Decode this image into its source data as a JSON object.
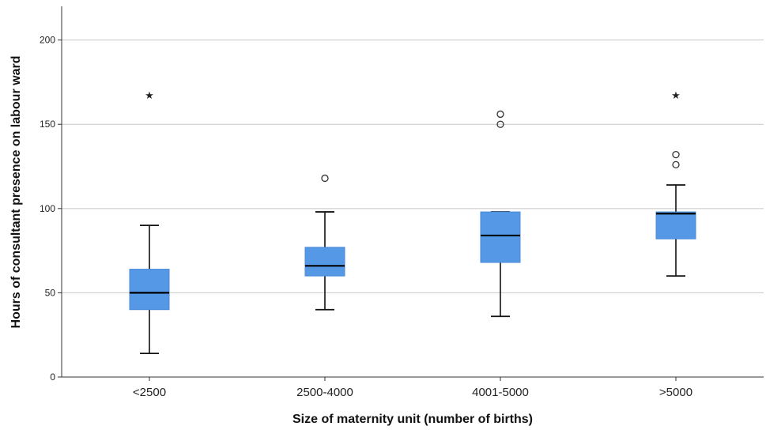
{
  "chart_data": {
    "type": "boxplot",
    "xlabel": "Size of maternity unit (number of births)",
    "ylabel": "Hours of consultant presence on labour ward",
    "ylim": [
      0,
      220
    ],
    "yticks": [
      0,
      50,
      100,
      150,
      200
    ],
    "grid": true,
    "box_color": "#5599e6",
    "categories": [
      "<2500",
      "2500-4000",
      "4001-5000",
      ">5000"
    ],
    "boxes": [
      {
        "category": "<2500",
        "whisker_low": 14,
        "q1": 40,
        "median": 50,
        "q3": 64,
        "whisker_high": 90,
        "outliers": [],
        "extremes": [
          168
        ]
      },
      {
        "category": "2500-4000",
        "whisker_low": 40,
        "q1": 60,
        "median": 66,
        "q3": 77,
        "whisker_high": 98,
        "outliers": [
          118
        ],
        "extremes": []
      },
      {
        "category": "4001-5000",
        "whisker_low": 36,
        "q1": 68,
        "median": 84,
        "q3": 98,
        "whisker_high": 98,
        "outliers": [
          150,
          156
        ],
        "extremes": []
      },
      {
        "category": ">5000",
        "whisker_low": 60,
        "q1": 82,
        "median": 97,
        "q3": 98,
        "whisker_high": 114,
        "outliers": [
          126,
          132
        ],
        "extremes": [
          168
        ]
      }
    ]
  }
}
